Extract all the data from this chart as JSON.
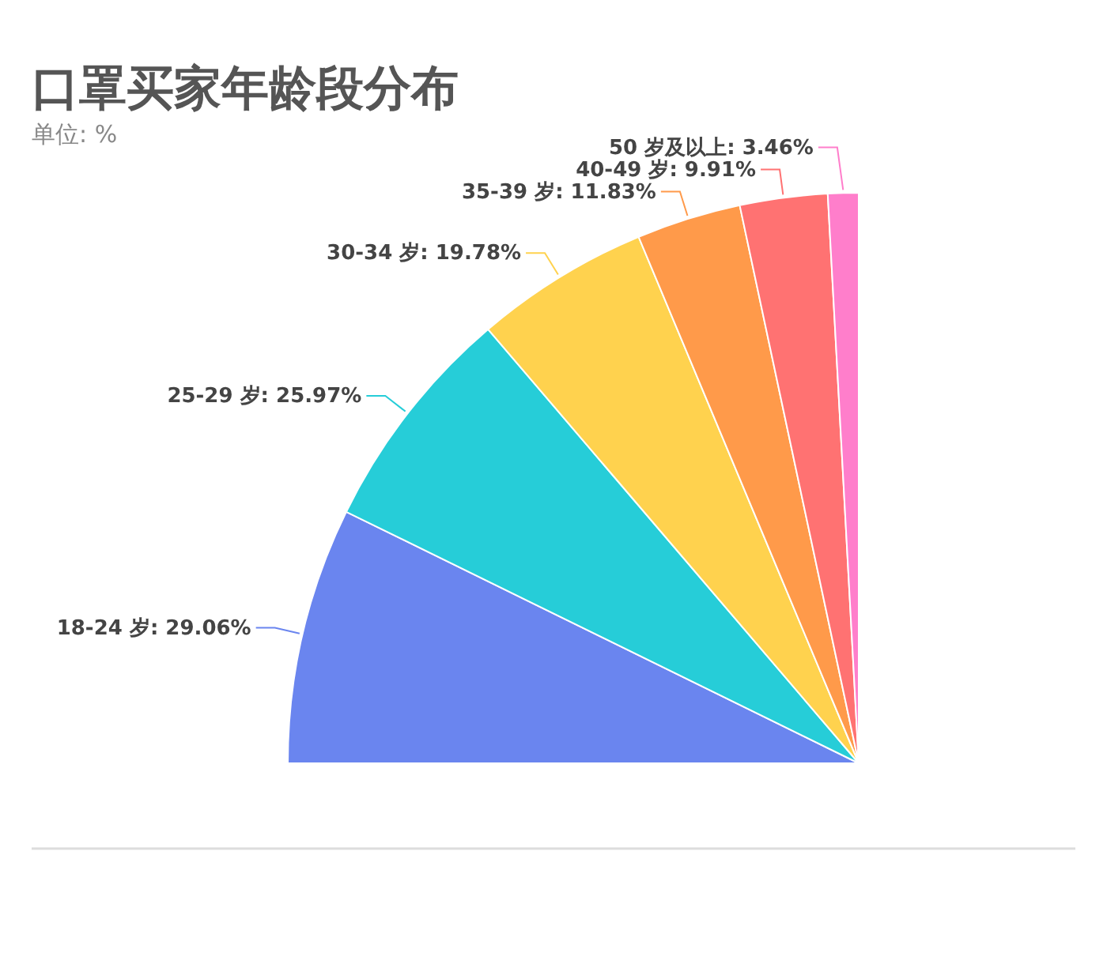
{
  "chart_data": {
    "type": "pie",
    "title": "口罩买家年龄段分布",
    "subtitle": "单位: %",
    "categories": [
      "18-24 岁",
      "25-29 岁",
      "30-34 岁",
      "35-39 岁",
      "40-49 岁",
      "50 岁及以上"
    ],
    "values": [
      29.06,
      25.97,
      19.78,
      11.83,
      9.91,
      3.46
    ],
    "colors": [
      "#6a85ef",
      "#26cdd8",
      "#ffd24e",
      "#ff9a4a",
      "#ff7272",
      "#ff7ecb"
    ],
    "value_labels": [
      ": 29.06%",
      ": 25.97%",
      ": 19.78%",
      ": 11.83%",
      ": 9.91%",
      ": 3.46%"
    ],
    "legend": false
  }
}
